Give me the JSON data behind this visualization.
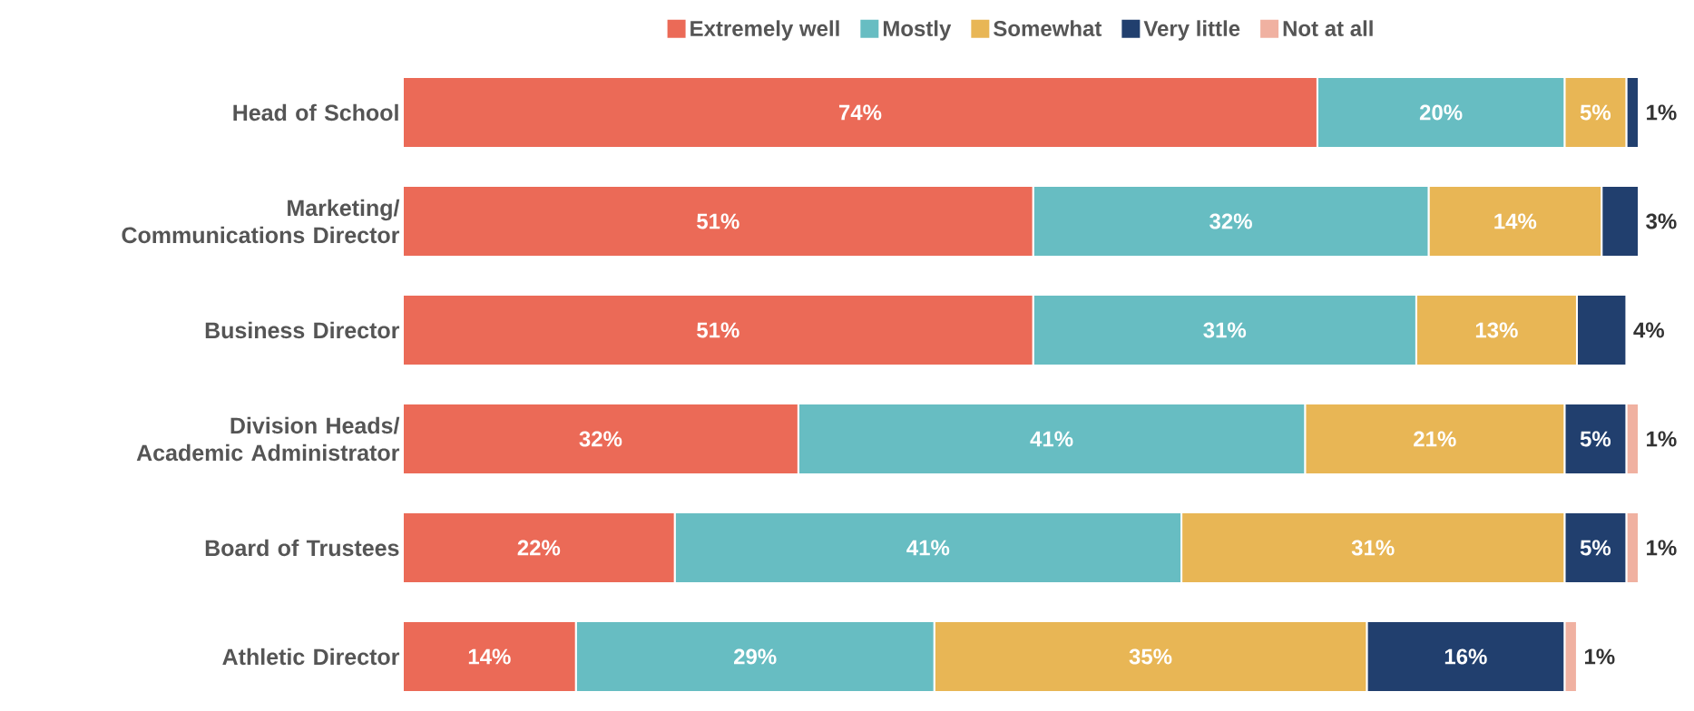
{
  "chart_data": {
    "type": "bar",
    "orientation": "horizontal",
    "stacked": true,
    "categories": [
      "Head of School",
      "Marketing/ Communications Director",
      "Business Director",
      "Division Heads/ Academic Administrator",
      "Board of Trustees",
      "Athletic Director"
    ],
    "xlim": [
      0,
      100
    ],
    "tick_labels": "y",
    "legend": "top",
    "grid": false,
    "series": [
      {
        "name": "Extremely well",
        "color": "#eb6a57",
        "values": [
          74,
          51,
          51,
          32,
          22,
          14
        ],
        "value_labels": [
          "74%",
          "51%",
          "51%",
          "32%",
          "22%",
          "14%"
        ]
      },
      {
        "name": "Mostly",
        "color": "#67bdc2",
        "values": [
          20,
          32,
          31,
          41,
          41,
          29
        ],
        "value_labels": [
          "20%",
          "32%",
          "31%",
          "41%",
          "41%",
          "29%"
        ]
      },
      {
        "name": "Somewhat",
        "color": "#e8b655",
        "values": [
          5,
          14,
          13,
          21,
          31,
          35
        ],
        "value_labels": [
          "5%",
          "14%",
          "13%",
          "21%",
          "31%",
          "35%"
        ]
      },
      {
        "name": "Very little",
        "color": "#213f6e",
        "values": [
          1,
          3,
          4,
          5,
          5,
          16
        ],
        "value_labels": [
          "1%",
          "3%",
          "4%",
          "5%",
          "5%",
          "16%"
        ]
      },
      {
        "name": "Not at all",
        "color": "#f0b1a1",
        "values": [
          null,
          null,
          null,
          1,
          1,
          1
        ],
        "value_labels": [
          null,
          null,
          null,
          "1%",
          "1%",
          "1%"
        ]
      }
    ]
  }
}
